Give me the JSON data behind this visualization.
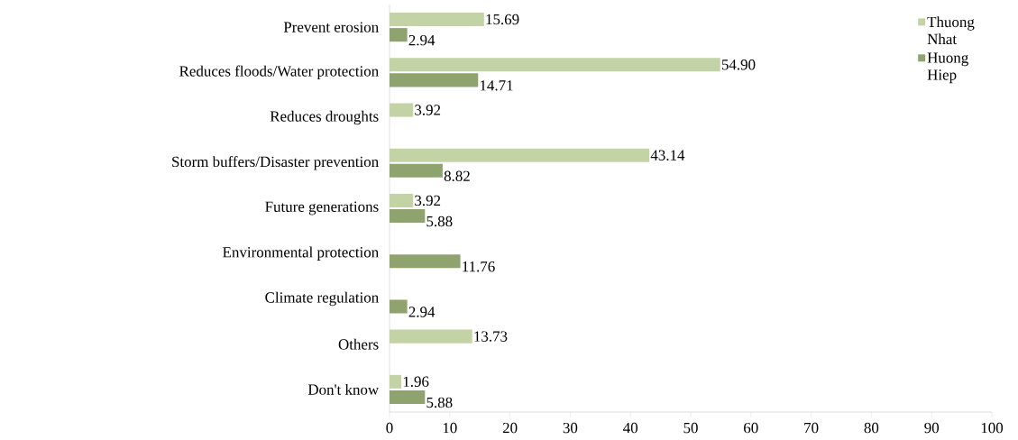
{
  "chart_data": {
    "type": "bar",
    "orientation": "horizontal",
    "categories": [
      "Prevent erosion",
      "Reduces floods/Water protection",
      "Reduces droughts",
      "Storm buffers/Disaster prevention",
      "Future generations",
      "Environmental protection",
      "Climate regulation",
      "Others",
      "Don't know"
    ],
    "series": [
      {
        "name": "Thuong Nhat",
        "color": "#c4d3a6",
        "values": [
          15.69,
          54.9,
          3.92,
          43.14,
          3.92,
          null,
          null,
          13.73,
          1.96
        ],
        "value_labels": [
          "15.69",
          "54.90",
          "3.92",
          "43.14",
          "3.92",
          null,
          null,
          "13.73",
          "1.96"
        ]
      },
      {
        "name": "Huong Hiep",
        "color": "#8fa36e",
        "values": [
          2.94,
          14.71,
          null,
          8.82,
          5.88,
          11.76,
          2.94,
          null,
          5.88
        ],
        "value_labels": [
          "2.94",
          "14.71",
          null,
          "8.82",
          "5.88",
          "11.76",
          "2.94",
          null,
          "5.88"
        ]
      }
    ],
    "xlim": [
      0,
      100
    ],
    "xticks": [
      0,
      10,
      20,
      30,
      40,
      50,
      60,
      70,
      80,
      90,
      100
    ],
    "legend": "top right",
    "grid": false
  }
}
